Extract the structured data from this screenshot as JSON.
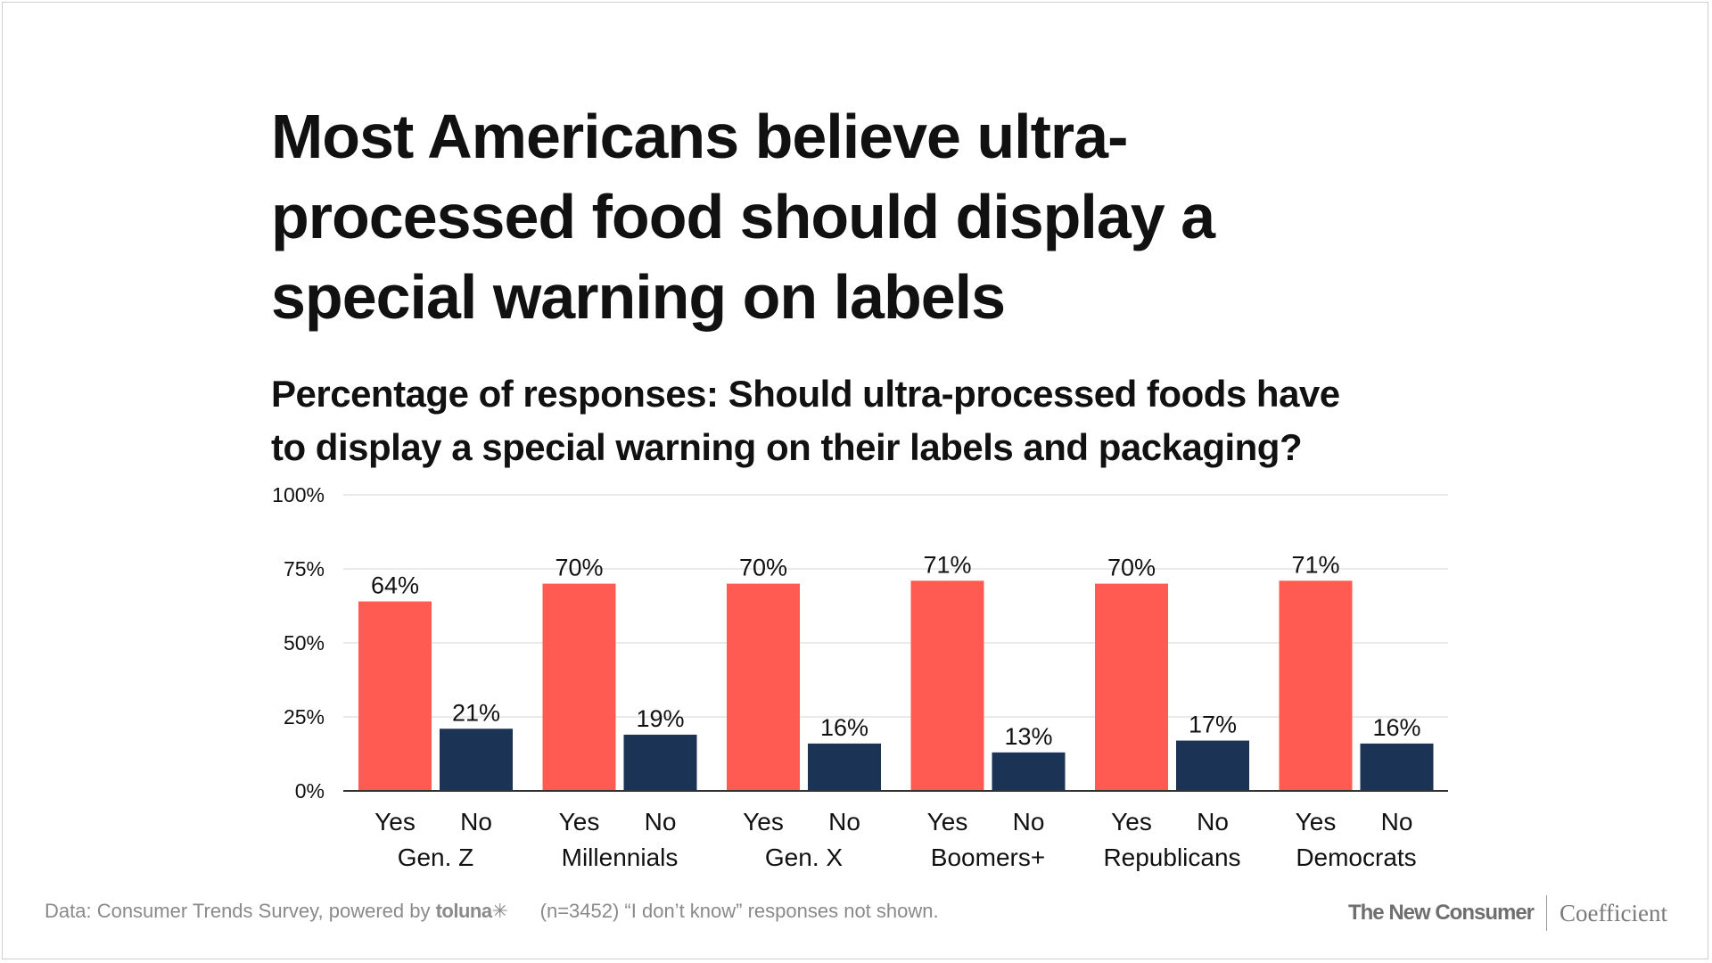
{
  "chart_data": {
    "type": "bar",
    "title": "Most Americans believe ultra-processed food should display a special warning on labels",
    "title_lines": [
      "Most Americans believe ultra-",
      "processed food should display a",
      "special warning on labels"
    ],
    "subtitle": "Percentage of responses: Should ultra-processed foods have to display a special warning on their labels and packaging?",
    "subtitle_lines": [
      "Percentage of responses: Should ultra-processed foods have",
      "to display a special warning on their labels and packaging?"
    ],
    "categories": [
      "Gen. Z",
      "Millennials",
      "Gen. X",
      "Boomers+",
      "Republicans",
      "Democrats"
    ],
    "series": [
      {
        "name": "Yes",
        "values": [
          64,
          70,
          70,
          71,
          70,
          71
        ],
        "color": "#ff5b52"
      },
      {
        "name": "No",
        "values": [
          21,
          19,
          16,
          13,
          17,
          16
        ],
        "color": "#1b3354"
      }
    ],
    "value_labels": {
      "Yes": [
        "64%",
        "70%",
        "70%",
        "71%",
        "70%",
        "71%"
      ],
      "No": [
        "21%",
        "19%",
        "16%",
        "13%",
        "17%",
        "16%"
      ]
    },
    "ylim": [
      0,
      100
    ],
    "yticks": [
      0,
      25,
      50,
      75,
      100
    ],
    "ytick_labels": [
      "0%",
      "25%",
      "50%",
      "75%",
      "100%"
    ],
    "grid": true,
    "xlabel": "",
    "ylabel": ""
  },
  "colors": {
    "yes": "#ff5b52",
    "no": "#1b3354",
    "grid": "#e3e3e3",
    "axis": "#333333"
  },
  "footer": {
    "source_prefix": "Data: Consumer Trends Survey, powered by ",
    "source_brand": "toluna",
    "source_brand_mark": "✳",
    "note": "(n=3452) “I don’t know” responses not shown.",
    "brand_primary": "The New Consumer",
    "brand_secondary": "Coefficient"
  }
}
